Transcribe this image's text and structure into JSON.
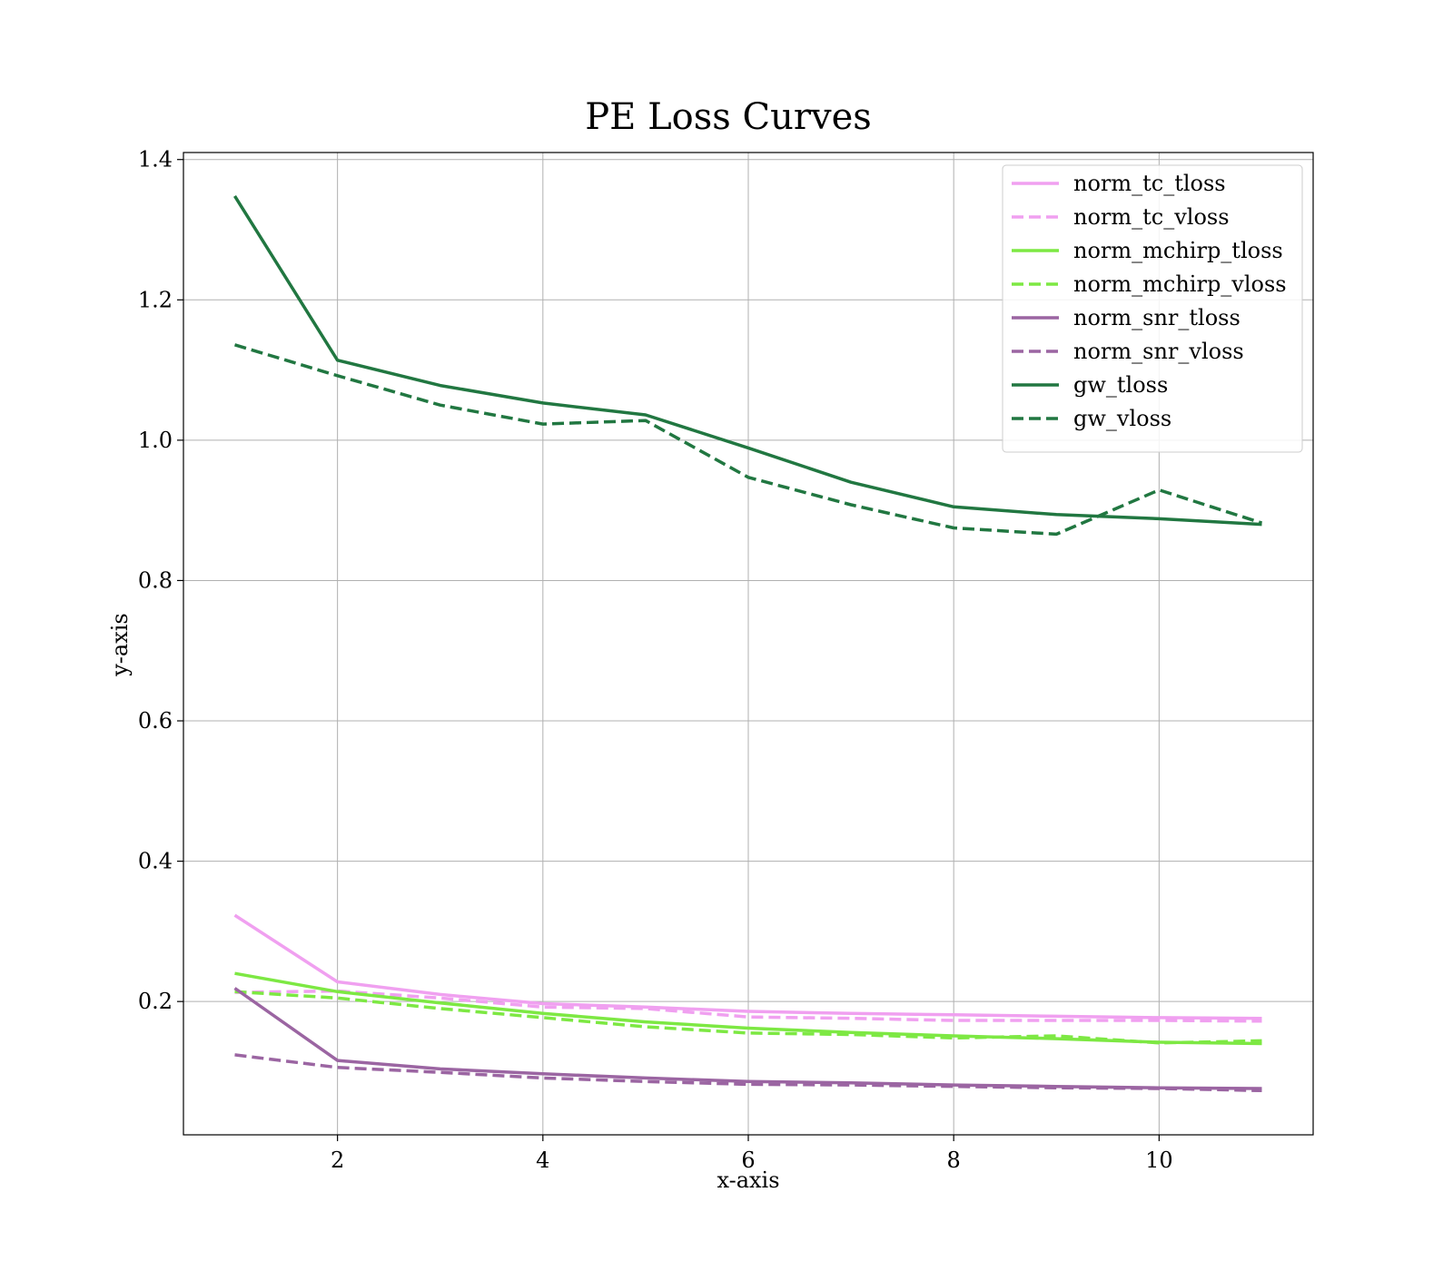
{
  "chart_data": {
    "type": "line",
    "title": "PE Loss Curves",
    "xlabel": "x-axis",
    "ylabel": "y-axis",
    "xlim": [
      0.5,
      11.5
    ],
    "ylim": [
      0.01,
      1.41
    ],
    "xticks": [
      2,
      4,
      6,
      8,
      10
    ],
    "yticks": [
      0.2,
      0.4,
      0.6,
      0.8,
      1.0,
      1.2,
      1.4
    ],
    "xtick_labels": [
      "2",
      "4",
      "6",
      "8",
      "10"
    ],
    "ytick_labels": [
      "0.2",
      "0.4",
      "0.6",
      "0.8",
      "1.0",
      "1.2",
      "1.4"
    ],
    "grid": true,
    "legend_position": "top-right",
    "x": [
      1,
      2,
      3,
      4,
      5,
      6,
      7,
      8,
      9,
      10,
      11
    ],
    "series": [
      {
        "name": "norm_tc_tloss",
        "color": "#f0a0f0",
        "style": "solid",
        "values": [
          0.323,
          0.228,
          0.21,
          0.197,
          0.192,
          0.186,
          0.183,
          0.181,
          0.179,
          0.177,
          0.176
        ]
      },
      {
        "name": "norm_tc_vloss",
        "color": "#f0a0f0",
        "style": "dashed",
        "values": [
          0.213,
          0.215,
          0.205,
          0.192,
          0.19,
          0.178,
          0.176,
          0.173,
          0.173,
          0.173,
          0.172
        ]
      },
      {
        "name": "norm_mchirp_tloss",
        "color": "#7de843",
        "style": "solid",
        "values": [
          0.24,
          0.214,
          0.198,
          0.183,
          0.171,
          0.162,
          0.156,
          0.151,
          0.147,
          0.142,
          0.14
        ]
      },
      {
        "name": "norm_mchirp_vloss",
        "color": "#7de843",
        "style": "dashed",
        "values": [
          0.214,
          0.205,
          0.19,
          0.177,
          0.164,
          0.155,
          0.153,
          0.148,
          0.151,
          0.141,
          0.144
        ]
      },
      {
        "name": "norm_snr_tloss",
        "color": "#9b65a2",
        "style": "solid",
        "values": [
          0.219,
          0.116,
          0.104,
          0.097,
          0.091,
          0.086,
          0.084,
          0.081,
          0.079,
          0.077,
          0.076
        ]
      },
      {
        "name": "norm_snr_vloss",
        "color": "#9b65a2",
        "style": "dashed",
        "values": [
          0.124,
          0.106,
          0.099,
          0.091,
          0.086,
          0.082,
          0.081,
          0.079,
          0.077,
          0.076,
          0.073
        ]
      },
      {
        "name": "gw_tloss",
        "color": "#217741",
        "style": "solid",
        "values": [
          1.348,
          1.114,
          1.078,
          1.053,
          1.036,
          0.989,
          0.94,
          0.905,
          0.894,
          0.888,
          0.88
        ]
      },
      {
        "name": "gw_vloss",
        "color": "#217741",
        "style": "dashed",
        "values": [
          1.136,
          1.092,
          1.05,
          1.023,
          1.028,
          0.947,
          0.908,
          0.875,
          0.866,
          0.929,
          0.882
        ]
      }
    ]
  }
}
